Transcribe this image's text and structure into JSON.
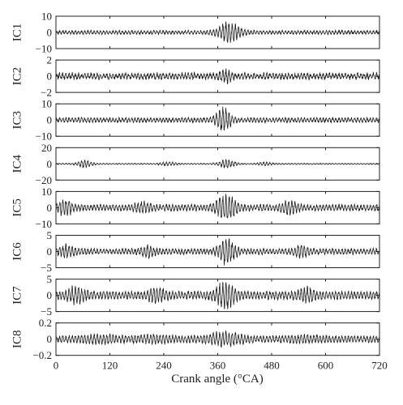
{
  "chart_data": {
    "type": "line",
    "xlabel": "Crank angle (°CA)",
    "xlim": [
      0,
      720
    ],
    "x_ticks": [
      0,
      120,
      240,
      360,
      480,
      600,
      720
    ],
    "panels": [
      {
        "name": "IC1",
        "ylim": [
          -10,
          10
        ],
        "y_ticks": [
          10,
          0,
          -10
        ],
        "baseline": 1.2,
        "burst_center": 385,
        "burst_amp": 6.5,
        "burst_width": 18,
        "noise_amp": 0.6,
        "secondary_bursts": []
      },
      {
        "name": "IC2",
        "ylim": [
          -2,
          2
        ],
        "y_ticks": [
          2,
          0,
          -2
        ],
        "baseline": 0.35,
        "burst_center": 378,
        "burst_amp": 0.7,
        "burst_width": 10,
        "noise_amp": 0.35,
        "secondary_bursts": []
      },
      {
        "name": "IC3",
        "ylim": [
          -10,
          10
        ],
        "y_ticks": [
          10,
          0,
          -10
        ],
        "baseline": 1.5,
        "burst_center": 372,
        "burst_amp": 7.5,
        "burst_width": 12,
        "noise_amp": 0.8,
        "secondary_bursts": []
      },
      {
        "name": "IC4",
        "ylim": [
          -20,
          20
        ],
        "y_ticks": [
          20,
          0,
          -20
        ],
        "baseline": 0.8,
        "burst_center": 380,
        "burst_amp": 5,
        "burst_width": 14,
        "noise_amp": 0.3,
        "secondary_bursts": [
          [
            65,
            4.5,
            12
          ],
          [
            250,
            2,
            14
          ],
          [
            465,
            2,
            12
          ]
        ]
      },
      {
        "name": "IC5",
        "ylim": [
          -10,
          10
        ],
        "y_ticks": [
          10,
          0,
          -10
        ],
        "baseline": 2.0,
        "burst_center": 378,
        "burst_amp": 7.5,
        "burst_width": 16,
        "noise_amp": 0.8,
        "secondary_bursts": [
          [
            20,
            3.5,
            14
          ],
          [
            195,
            2.5,
            12
          ],
          [
            520,
            3,
            14
          ]
        ]
      },
      {
        "name": "IC6",
        "ylim": [
          -5,
          5
        ],
        "y_ticks": [
          5,
          0,
          -5
        ],
        "baseline": 0.9,
        "burst_center": 380,
        "burst_amp": 3.8,
        "burst_width": 14,
        "noise_amp": 0.5,
        "secondary_bursts": [
          [
            25,
            1.6,
            14
          ],
          [
            205,
            1.4,
            12
          ],
          [
            545,
            1.5,
            12
          ]
        ]
      },
      {
        "name": "IC7",
        "ylim": [
          -5,
          5
        ],
        "y_ticks": [
          5,
          0,
          -5
        ],
        "baseline": 1.3,
        "burst_center": 378,
        "burst_amp": 3.5,
        "burst_width": 16,
        "noise_amp": 0.5,
        "secondary_bursts": [
          [
            45,
            1.8,
            16
          ],
          [
            225,
            1.6,
            14
          ],
          [
            560,
            1.6,
            14
          ]
        ]
      },
      {
        "name": "IC8",
        "ylim": [
          -0.2,
          0.2
        ],
        "y_ticks": [
          0.2,
          0,
          -0.2
        ],
        "baseline": 0.045,
        "burst_center": 375,
        "burst_amp": 0.06,
        "burst_width": 30,
        "noise_amp": 0.01,
        "secondary_bursts": [
          [
            95,
            0.03,
            30
          ],
          [
            220,
            0.025,
            30
          ],
          [
            550,
            0.02,
            30
          ]
        ]
      }
    ]
  }
}
